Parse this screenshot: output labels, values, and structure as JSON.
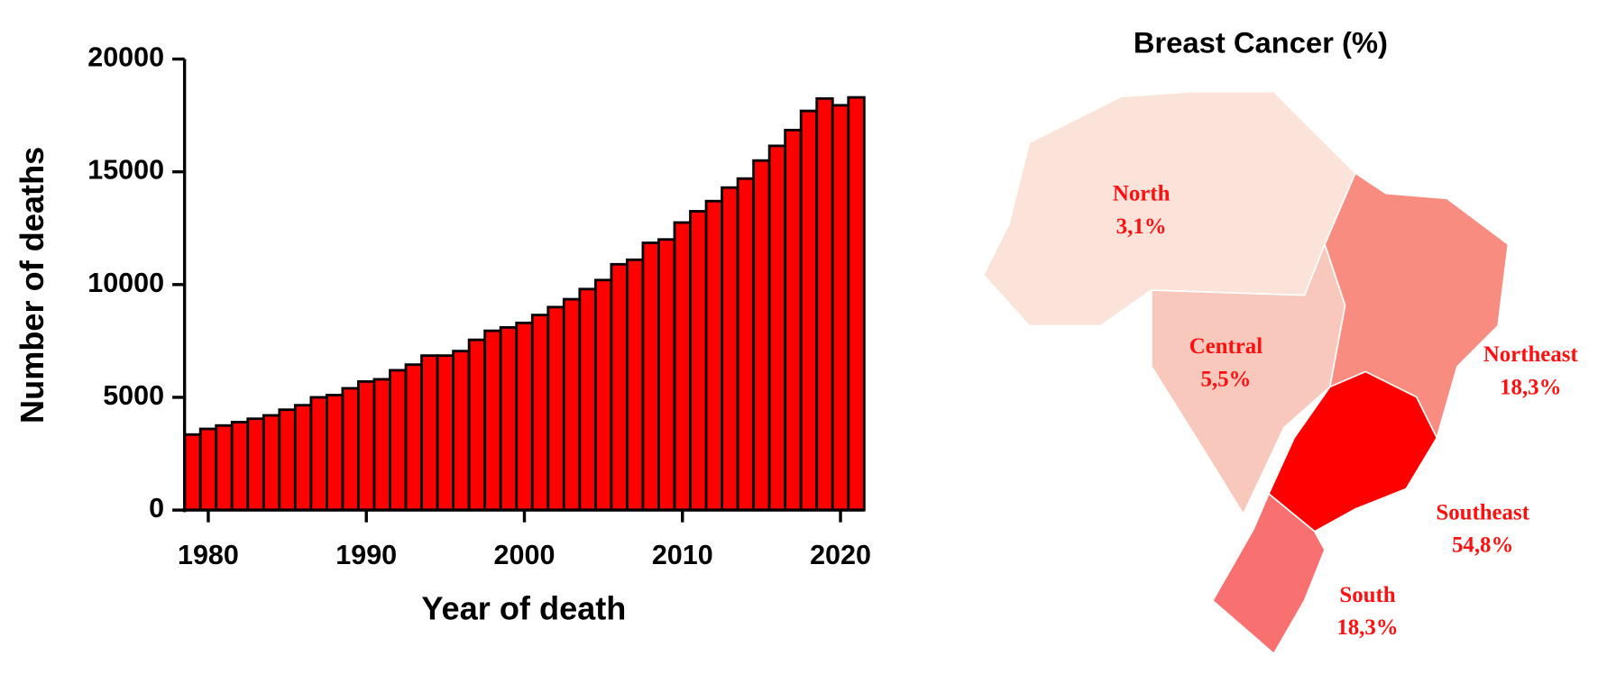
{
  "chart_data": [
    {
      "type": "bar",
      "xlabel": "Year of death",
      "ylabel": "Number of deaths",
      "x": [
        1979,
        1980,
        1981,
        1982,
        1983,
        1984,
        1985,
        1986,
        1987,
        1988,
        1989,
        1990,
        1991,
        1992,
        1993,
        1994,
        1995,
        1996,
        1997,
        1998,
        1999,
        2000,
        2001,
        2002,
        2003,
        2004,
        2005,
        2006,
        2007,
        2008,
        2009,
        2010,
        2011,
        2012,
        2013,
        2014,
        2015,
        2016,
        2017,
        2018,
        2019,
        2020,
        2021
      ],
      "values": [
        3350,
        3600,
        3750,
        3900,
        4050,
        4200,
        4450,
        4650,
        5000,
        5100,
        5400,
        5700,
        5800,
        6200,
        6450,
        6850,
        6850,
        7050,
        7550,
        7950,
        8100,
        8300,
        8650,
        9000,
        9350,
        9800,
        10200,
        10900,
        11100,
        11850,
        12000,
        12750,
        13250,
        13700,
        14300,
        14700,
        15500,
        16150,
        16850,
        17700,
        18250,
        17950,
        18300
      ],
      "color": "#ff0000",
      "xlim": [
        1978.5,
        2021.5
      ],
      "xticks": [
        1980,
        1990,
        2000,
        2010,
        2020
      ],
      "ylim": [
        0,
        20000
      ],
      "yticks": [
        0,
        5000,
        10000,
        15000,
        20000
      ]
    },
    {
      "type": "map",
      "title": "Breast Cancer (%)",
      "categories": [
        "North",
        "Central",
        "Northeast",
        "Southeast",
        "South"
      ],
      "values": [
        3.1,
        5.5,
        18.3,
        54.8,
        18.3
      ],
      "value_labels": [
        "3,1%",
        "5,5%",
        "18,3%",
        "54,8%",
        "18,3%"
      ],
      "colors": [
        "#fbe3da",
        "#f8c8bc",
        "#f88c80",
        "#ff0000",
        "#f87070"
      ]
    }
  ]
}
